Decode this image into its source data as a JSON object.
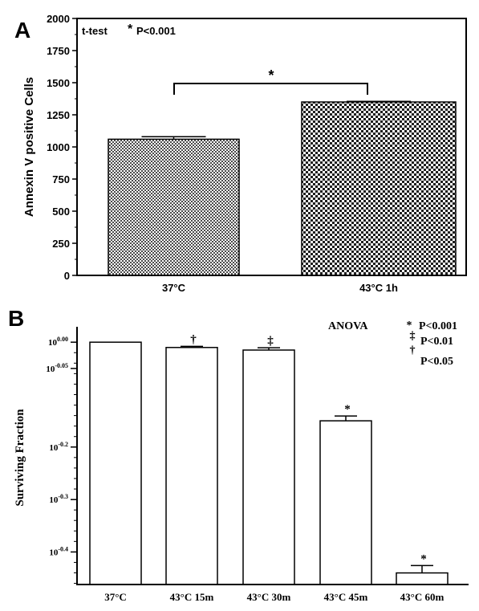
{
  "chart_data": [
    {
      "panel_label": "A",
      "type": "bar",
      "categories": [
        "37°C",
        "43°C 1h"
      ],
      "values": [
        1060,
        1350
      ],
      "errors": [
        20,
        5
      ],
      "ylabel": "Annexin V positive Cells",
      "ylim": [
        0,
        2000
      ],
      "yticks": [
        "0",
        "250",
        "500",
        "750",
        "1000",
        "1250",
        "1500",
        "1750",
        "2000"
      ],
      "test_label": "t-test",
      "significance": {
        "symbol": "*",
        "text": "P<0.001"
      },
      "bracket_symbol": "*",
      "fill": "crosshatch"
    },
    {
      "panel_label": "B",
      "type": "bar",
      "scale": "log",
      "categories": [
        "37°C",
        "43°C 15m",
        "43°C 30m",
        "43°C 45m",
        "43°C 60m"
      ],
      "values": [
        1.0,
        0.977,
        0.966,
        0.708,
        0.363
      ],
      "errors": [
        0,
        0.005,
        0.01,
        0.015,
        0.012
      ],
      "marks": [
        "",
        "†",
        "‡",
        "*",
        "*"
      ],
      "ylabel": "Surviving Fraction",
      "ylim": [
        0.345,
        1.07
      ],
      "major_ticks": [
        {
          "value": 1.0,
          "base": "10",
          "exp": "0.00"
        },
        {
          "value": 0.891,
          "base": "10",
          "exp": "-0.05"
        },
        {
          "value": 0.631,
          "base": "10",
          "exp": "-0.2"
        },
        {
          "value": 0.501,
          "base": "10",
          "exp": "-0.3"
        },
        {
          "value": 0.398,
          "base": "10",
          "exp": "-0.4"
        }
      ],
      "test_label": "ANOVA",
      "legend": [
        {
          "symbol": "*",
          "text": "P<0.001"
        },
        {
          "symbol": "‡",
          "text": "P<0.01"
        },
        {
          "symbol": "†",
          "text": "P<0.05"
        }
      ],
      "fill": "white"
    }
  ]
}
